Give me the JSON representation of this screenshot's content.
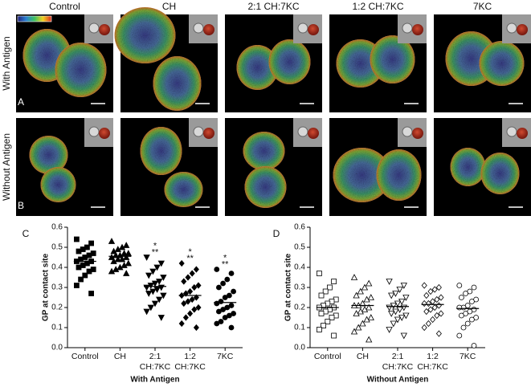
{
  "figure": {
    "columns": [
      "Control",
      "CH",
      "2:1 CH:7KC",
      "1:2 CH:7KC",
      "7KC"
    ],
    "rows": [
      "With Antigen",
      "Without Antigen"
    ],
    "panel_labels": [
      "A",
      "B"
    ]
  },
  "chart_data": [
    {
      "type": "strip",
      "panel_label": "C",
      "y_label": "GP at contact site",
      "x_label": "With Antigen",
      "fill": "filled",
      "categories": [
        [
          "Control"
        ],
        [
          "CH"
        ],
        [
          "2:1",
          "CH:7KC"
        ],
        [
          "1:2",
          "CH:7KC"
        ],
        [
          "7KC"
        ]
      ],
      "ylim": [
        0,
        0.6
      ],
      "yticks": [
        {
          "value": 0,
          "label": "0.0"
        },
        0.1,
        0.2,
        0.3,
        0.4,
        0.5,
        0.6
      ],
      "groups": [
        {
          "marker": "square",
          "mean": 0.43,
          "values": [
            0.54,
            0.52,
            0.5,
            0.49,
            0.48,
            0.47,
            0.46,
            0.45,
            0.44,
            0.43,
            0.43,
            0.42,
            0.41,
            0.4,
            0.39,
            0.38,
            0.36,
            0.34,
            0.31,
            0.27
          ]
        },
        {
          "marker": "triangle-up",
          "mean": 0.455,
          "values": [
            0.53,
            0.51,
            0.5,
            0.49,
            0.48,
            0.47,
            0.47,
            0.46,
            0.46,
            0.45,
            0.45,
            0.44,
            0.44,
            0.43,
            0.42,
            0.41,
            0.4,
            0.39,
            0.38,
            0.37
          ]
        },
        {
          "marker": "triangle-down",
          "mean": 0.305,
          "annotations": [
            "*",
            "**"
          ],
          "values": [
            0.45,
            0.42,
            0.4,
            0.38,
            0.36,
            0.35,
            0.33,
            0.32,
            0.31,
            0.3,
            0.3,
            0.29,
            0.28,
            0.27,
            0.26,
            0.24,
            0.22,
            0.2,
            0.18,
            0.15
          ]
        },
        {
          "marker": "diamond",
          "mean": 0.26,
          "annotations": [
            "*",
            "**"
          ],
          "values": [
            0.42,
            0.39,
            0.37,
            0.35,
            0.33,
            0.31,
            0.3,
            0.28,
            0.27,
            0.26,
            0.25,
            0.24,
            0.23,
            0.22,
            0.2,
            0.19,
            0.17,
            0.15,
            0.12,
            0.1
          ]
        },
        {
          "marker": "circle",
          "mean": 0.225,
          "annotations": [
            "*",
            "**"
          ],
          "values": [
            0.39,
            0.37,
            0.34,
            0.32,
            0.3,
            0.28,
            0.26,
            0.25,
            0.23,
            0.22,
            0.21,
            0.2,
            0.19,
            0.18,
            0.17,
            0.16,
            0.15,
            0.13,
            0.12,
            0.1
          ]
        }
      ]
    },
    {
      "type": "strip",
      "panel_label": "D",
      "y_label": "GP at contact site",
      "x_label": "Without Antigen",
      "fill": "open",
      "categories": [
        [
          "Control"
        ],
        [
          "CH"
        ],
        [
          "2:1",
          "CH:7KC"
        ],
        [
          "1:2",
          "CH:7KC"
        ],
        [
          "7KC"
        ]
      ],
      "ylim": [
        0,
        0.6
      ],
      "yticks": [
        {
          "value": 0,
          "label": "0.0"
        },
        0.1,
        0.2,
        0.3,
        0.4,
        0.5,
        0.6
      ],
      "groups": [
        {
          "marker": "square",
          "mean": 0.2,
          "values": [
            0.37,
            0.33,
            0.3,
            0.28,
            0.26,
            0.24,
            0.23,
            0.22,
            0.21,
            0.2,
            0.2,
            0.19,
            0.18,
            0.17,
            0.16,
            0.15,
            0.13,
            0.11,
            0.09,
            0.06
          ]
        },
        {
          "marker": "triangle-up",
          "mean": 0.21,
          "values": [
            0.35,
            0.32,
            0.3,
            0.28,
            0.26,
            0.25,
            0.24,
            0.22,
            0.21,
            0.21,
            0.2,
            0.19,
            0.18,
            0.17,
            0.15,
            0.14,
            0.12,
            0.1,
            0.08,
            0.04
          ]
        },
        {
          "marker": "triangle-down",
          "mean": 0.205,
          "values": [
            0.33,
            0.31,
            0.29,
            0.27,
            0.26,
            0.25,
            0.23,
            0.22,
            0.21,
            0.2,
            0.2,
            0.19,
            0.18,
            0.17,
            0.16,
            0.15,
            0.14,
            0.12,
            0.09,
            0.06
          ]
        },
        {
          "marker": "diamond",
          "mean": 0.215,
          "values": [
            0.31,
            0.3,
            0.29,
            0.28,
            0.26,
            0.25,
            0.24,
            0.23,
            0.22,
            0.22,
            0.21,
            0.2,
            0.19,
            0.18,
            0.17,
            0.16,
            0.14,
            0.12,
            0.1,
            0.07
          ]
        },
        {
          "marker": "circle",
          "mean": 0.195,
          "values": [
            0.31,
            0.3,
            0.28,
            0.27,
            0.25,
            0.24,
            0.23,
            0.21,
            0.2,
            0.2,
            0.19,
            0.18,
            0.17,
            0.16,
            0.15,
            0.14,
            0.12,
            0.1,
            0.06,
            0.01
          ]
        }
      ]
    }
  ]
}
